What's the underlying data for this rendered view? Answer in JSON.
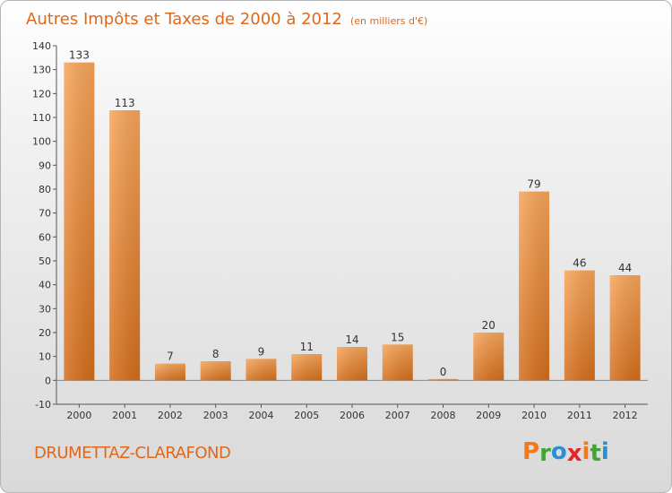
{
  "chart_data": {
    "type": "bar",
    "title": "Autres Impôts et Taxes de 2000 à 2012",
    "subtitle": "(en milliers d'€)",
    "categories": [
      "2000",
      "2001",
      "2002",
      "2003",
      "2004",
      "2005",
      "2006",
      "2007",
      "2008",
      "2009",
      "2010",
      "2011",
      "2012"
    ],
    "values": [
      133,
      113,
      7,
      8,
      9,
      11,
      14,
      15,
      0,
      20,
      79,
      46,
      44
    ],
    "ylim": [
      -10,
      140
    ],
    "yticks": [
      -10,
      0,
      10,
      20,
      30,
      40,
      50,
      60,
      70,
      80,
      90,
      100,
      110,
      120,
      130,
      140
    ],
    "grid": false,
    "bar_color": "#e8812a"
  },
  "footer": {
    "commune": "DRUMETTAZ-CLARAFOND",
    "logo_letters": [
      "P",
      "r",
      "o",
      "x",
      "i",
      "t",
      "i"
    ],
    "logo_colors": [
      "#ee7a1a",
      "#3fa535",
      "#2b8fd6",
      "#e3262a",
      "#ee7a1a",
      "#3fa535",
      "#2b8fd6"
    ]
  }
}
